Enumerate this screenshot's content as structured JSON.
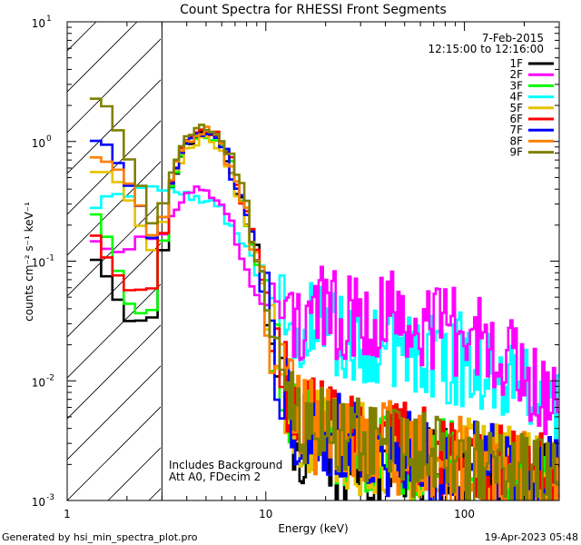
{
  "chart_data": {
    "type": "line",
    "title": "Count Spectra for RHESSI Front Segments",
    "xlabel": "Energy (keV)",
    "ylabel": "counts cm⁻² s⁻¹ keV⁻¹",
    "x_scale": "log",
    "y_scale": "log",
    "xlim": [
      1,
      300
    ],
    "ylim": [
      0.001,
      10
    ],
    "x_ticks": [
      {
        "value": 1,
        "label": "1"
      },
      {
        "value": 10,
        "label": "10"
      },
      {
        "value": 100,
        "label": "100"
      }
    ],
    "y_ticks": [
      {
        "value": 0.001,
        "base": "10",
        "exp": "-3"
      },
      {
        "value": 0.01,
        "base": "10",
        "exp": "-2"
      },
      {
        "value": 0.1,
        "base": "10",
        "exp": "-1"
      },
      {
        "value": 1,
        "base": "10",
        "exp": "0"
      },
      {
        "value": 10,
        "base": "10",
        "exp": "1"
      }
    ],
    "date": "7-Feb-2015",
    "time_range": "12:15:00 to 12:16:00",
    "hatched_region_keV": [
      1,
      3
    ],
    "annotations": [
      "Includes Background",
      "Att A0, FDecim 2"
    ],
    "series": [
      {
        "name": "1F",
        "color": "#000000",
        "x": [
          1.3,
          1.5,
          1.7,
          2.0,
          2.3,
          2.6,
          2.9,
          3.2,
          3.6,
          4.0,
          4.5,
          5.0,
          5.6,
          6.3,
          7.0,
          8.0,
          9.0,
          10.0,
          11.0,
          12.5,
          14.0,
          16.0,
          18.0,
          20.0,
          25.0,
          30.0,
          40.0,
          50.0,
          60.0,
          80.0,
          100.0,
          150.0,
          200.0,
          250.0,
          300.0
        ],
        "y": [
          0.13,
          0.09,
          0.055,
          0.035,
          0.03,
          0.027,
          0.05,
          0.3,
          0.6,
          0.9,
          1.1,
          1.2,
          1.1,
          0.8,
          0.5,
          0.25,
          0.12,
          0.05,
          0.02,
          0.008,
          0.004,
          0.003,
          0.0028,
          0.0025,
          0.0024,
          0.0022,
          0.0021,
          0.002,
          0.0019,
          0.0018,
          0.0018,
          0.0016,
          0.0015,
          0.0014,
          0.0013
        ]
      },
      {
        "name": "2F",
        "color": "#ff00ff",
        "x": [
          1.3,
          1.5,
          1.7,
          2.0,
          2.3,
          2.6,
          2.9,
          3.2,
          3.6,
          4.0,
          4.5,
          5.0,
          5.6,
          6.3,
          7.0,
          8.0,
          9.0,
          10.0,
          11.0,
          12.5,
          14.0,
          16.0,
          18.0,
          20.0,
          25.0,
          30.0,
          40.0,
          50.0,
          60.0,
          80.0,
          100.0,
          150.0,
          200.0,
          250.0,
          300.0
        ],
        "y": [
          0.17,
          0.14,
          0.12,
          0.13,
          0.15,
          0.14,
          0.16,
          0.2,
          0.27,
          0.35,
          0.4,
          0.38,
          0.32,
          0.25,
          0.18,
          0.1,
          0.05,
          0.04,
          0.04,
          0.035,
          0.035,
          0.035,
          0.04,
          0.035,
          0.035,
          0.04,
          0.035,
          0.035,
          0.03,
          0.03,
          0.025,
          0.02,
          0.012,
          0.008,
          0.006
        ]
      },
      {
        "name": "3F",
        "color": "#00ff00",
        "x": [
          1.3,
          1.5,
          1.7,
          2.0,
          2.3,
          2.6,
          2.9,
          3.2,
          3.6,
          4.0,
          4.5,
          5.0,
          5.6,
          6.3,
          7.0,
          8.0,
          9.0,
          10.0,
          11.0,
          12.5,
          14.0,
          16.0,
          18.0,
          20.0,
          25.0,
          30.0,
          40.0,
          50.0,
          60.0,
          80.0,
          100.0,
          150.0,
          200.0,
          250.0,
          300.0
        ],
        "y": [
          0.32,
          0.2,
          0.1,
          0.05,
          0.035,
          0.03,
          0.07,
          0.3,
          0.65,
          0.95,
          1.1,
          1.15,
          1.05,
          0.75,
          0.45,
          0.22,
          0.1,
          0.045,
          0.018,
          0.008,
          0.005,
          0.004,
          0.0035,
          0.0032,
          0.003,
          0.0028,
          0.0026,
          0.0025,
          0.0024,
          0.0022,
          0.002,
          0.0018,
          0.0016,
          0.0015,
          0.0014
        ]
      },
      {
        "name": "4F",
        "color": "#00ffff",
        "x": [
          1.3,
          1.5,
          1.7,
          2.0,
          2.3,
          2.6,
          2.9,
          3.2,
          3.6,
          4.0,
          4.5,
          5.0,
          5.6,
          6.3,
          7.0,
          8.0,
          9.0,
          10.0,
          11.0,
          12.5,
          14.0,
          16.0,
          18.0,
          20.0,
          25.0,
          30.0,
          40.0,
          50.0,
          60.0,
          80.0,
          100.0,
          150.0,
          200.0,
          250.0,
          300.0
        ],
        "y": [
          0.26,
          0.33,
          0.36,
          0.36,
          0.38,
          0.4,
          0.42,
          0.4,
          0.38,
          0.36,
          0.34,
          0.32,
          0.3,
          0.26,
          0.2,
          0.14,
          0.09,
          0.06,
          0.042,
          0.034,
          0.03,
          0.028,
          0.026,
          0.025,
          0.023,
          0.022,
          0.02,
          0.019,
          0.018,
          0.016,
          0.015,
          0.013,
          0.01,
          0.0075,
          0.0055
        ]
      },
      {
        "name": "5F",
        "color": "#e6c200",
        "x": [
          1.3,
          1.5,
          1.7,
          2.0,
          2.3,
          2.6,
          2.9,
          3.2,
          3.6,
          4.0,
          4.5,
          5.0,
          5.6,
          6.3,
          7.0,
          8.0,
          9.0,
          10.0,
          11.0,
          12.5,
          14.0,
          16.0,
          18.0,
          20.0,
          25.0,
          30.0,
          40.0,
          50.0,
          60.0,
          80.0,
          100.0,
          150.0,
          200.0,
          250.0,
          300.0
        ],
        "y": [
          0.55,
          0.6,
          0.55,
          0.38,
          0.2,
          0.12,
          0.12,
          0.35,
          0.6,
          0.85,
          1.0,
          1.05,
          0.95,
          0.7,
          0.42,
          0.2,
          0.095,
          0.04,
          0.016,
          0.007,
          0.0045,
          0.0038,
          0.0034,
          0.0031,
          0.0029,
          0.0027,
          0.0025,
          0.0024,
          0.0023,
          0.0021,
          0.002,
          0.0018,
          0.0016,
          0.0015,
          0.0014
        ]
      },
      {
        "name": "6F",
        "color": "#ff0000",
        "x": [
          1.3,
          1.5,
          1.7,
          2.0,
          2.3,
          2.6,
          2.9,
          3.2,
          3.6,
          4.0,
          4.5,
          5.0,
          5.6,
          6.3,
          7.0,
          8.0,
          9.0,
          10.0,
          11.0,
          12.5,
          14.0,
          16.0,
          18.0,
          20.0,
          25.0,
          30.0,
          40.0,
          50.0,
          60.0,
          80.0,
          100.0,
          150.0,
          200.0,
          250.0,
          300.0
        ],
        "y": [
          0.22,
          0.12,
          0.08,
          0.06,
          0.055,
          0.05,
          0.09,
          0.35,
          0.7,
          1.0,
          1.2,
          1.25,
          1.15,
          0.8,
          0.5,
          0.25,
          0.11,
          0.05,
          0.02,
          0.009,
          0.006,
          0.005,
          0.0045,
          0.004,
          0.0037,
          0.0034,
          0.003,
          0.0028,
          0.0026,
          0.0024,
          0.0022,
          0.002,
          0.0018,
          0.0016,
          0.0015
        ]
      },
      {
        "name": "7F",
        "color": "#0000ff",
        "x": [
          1.3,
          1.5,
          1.7,
          2.0,
          2.3,
          2.6,
          2.9,
          3.2,
          3.6,
          4.0,
          4.5,
          5.0,
          5.6,
          6.3,
          7.0,
          8.0,
          9.0,
          10.0,
          11.0,
          12.5,
          14.0,
          16.0,
          18.0,
          20.0,
          25.0,
          30.0,
          40.0,
          50.0,
          60.0,
          80.0,
          100.0,
          150.0,
          200.0,
          250.0,
          300.0
        ],
        "y": [
          1.0,
          1.05,
          0.8,
          0.48,
          0.3,
          0.16,
          0.14,
          0.35,
          0.65,
          0.95,
          1.1,
          1.15,
          1.05,
          0.75,
          0.45,
          0.22,
          0.1,
          0.045,
          0.018,
          0.008,
          0.005,
          0.0042,
          0.0038,
          0.0034,
          0.0031,
          0.0028,
          0.0026,
          0.0025,
          0.0023,
          0.0021,
          0.002,
          0.0018,
          0.0016,
          0.0015,
          0.0014
        ]
      },
      {
        "name": "8F",
        "color": "#ff8000",
        "x": [
          1.3,
          1.5,
          1.7,
          2.0,
          2.3,
          2.6,
          2.9,
          3.2,
          3.6,
          4.0,
          4.5,
          5.0,
          5.6,
          6.3,
          7.0,
          8.0,
          9.0,
          10.0,
          11.0,
          12.5,
          14.0,
          16.0,
          18.0,
          20.0,
          25.0,
          30.0,
          40.0,
          50.0,
          60.0,
          80.0,
          100.0,
          150.0,
          200.0,
          250.0,
          300.0
        ],
        "y": [
          0.75,
          0.72,
          0.7,
          0.5,
          0.3,
          0.17,
          0.15,
          0.38,
          0.7,
          1.0,
          1.15,
          1.25,
          1.15,
          0.8,
          0.5,
          0.24,
          0.11,
          0.05,
          0.02,
          0.009,
          0.0055,
          0.0045,
          0.004,
          0.0036,
          0.0033,
          0.003,
          0.0028,
          0.0026,
          0.0024,
          0.0022,
          0.002,
          0.0018,
          0.0016,
          0.0015,
          0.0014
        ]
      },
      {
        "name": "9F",
        "color": "#808000",
        "x": [
          1.3,
          1.5,
          1.7,
          2.0,
          2.3,
          2.6,
          2.9,
          3.2,
          3.6,
          4.0,
          4.5,
          5.0,
          5.6,
          6.3,
          7.0,
          8.0,
          9.0,
          10.0,
          11.0,
          12.5,
          14.0,
          16.0,
          18.0,
          20.0,
          25.0,
          30.0,
          40.0,
          50.0,
          60.0,
          80.0,
          100.0,
          150.0,
          200.0,
          250.0,
          300.0
        ],
        "y": [
          2.3,
          2.2,
          1.5,
          0.8,
          0.45,
          0.22,
          0.18,
          0.45,
          0.8,
          1.1,
          1.25,
          1.3,
          1.2,
          0.85,
          0.55,
          0.26,
          0.12,
          0.05,
          0.02,
          0.009,
          0.0055,
          0.0045,
          0.004,
          0.0036,
          0.0033,
          0.003,
          0.0028,
          0.0026,
          0.0024,
          0.0022,
          0.002,
          0.0018,
          0.0016,
          0.0015,
          0.0014
        ]
      }
    ]
  },
  "footer": {
    "generated_by": "Generated by hsi_min_spectra_plot.pro",
    "timestamp": "19-Apr-2023 05:48"
  }
}
